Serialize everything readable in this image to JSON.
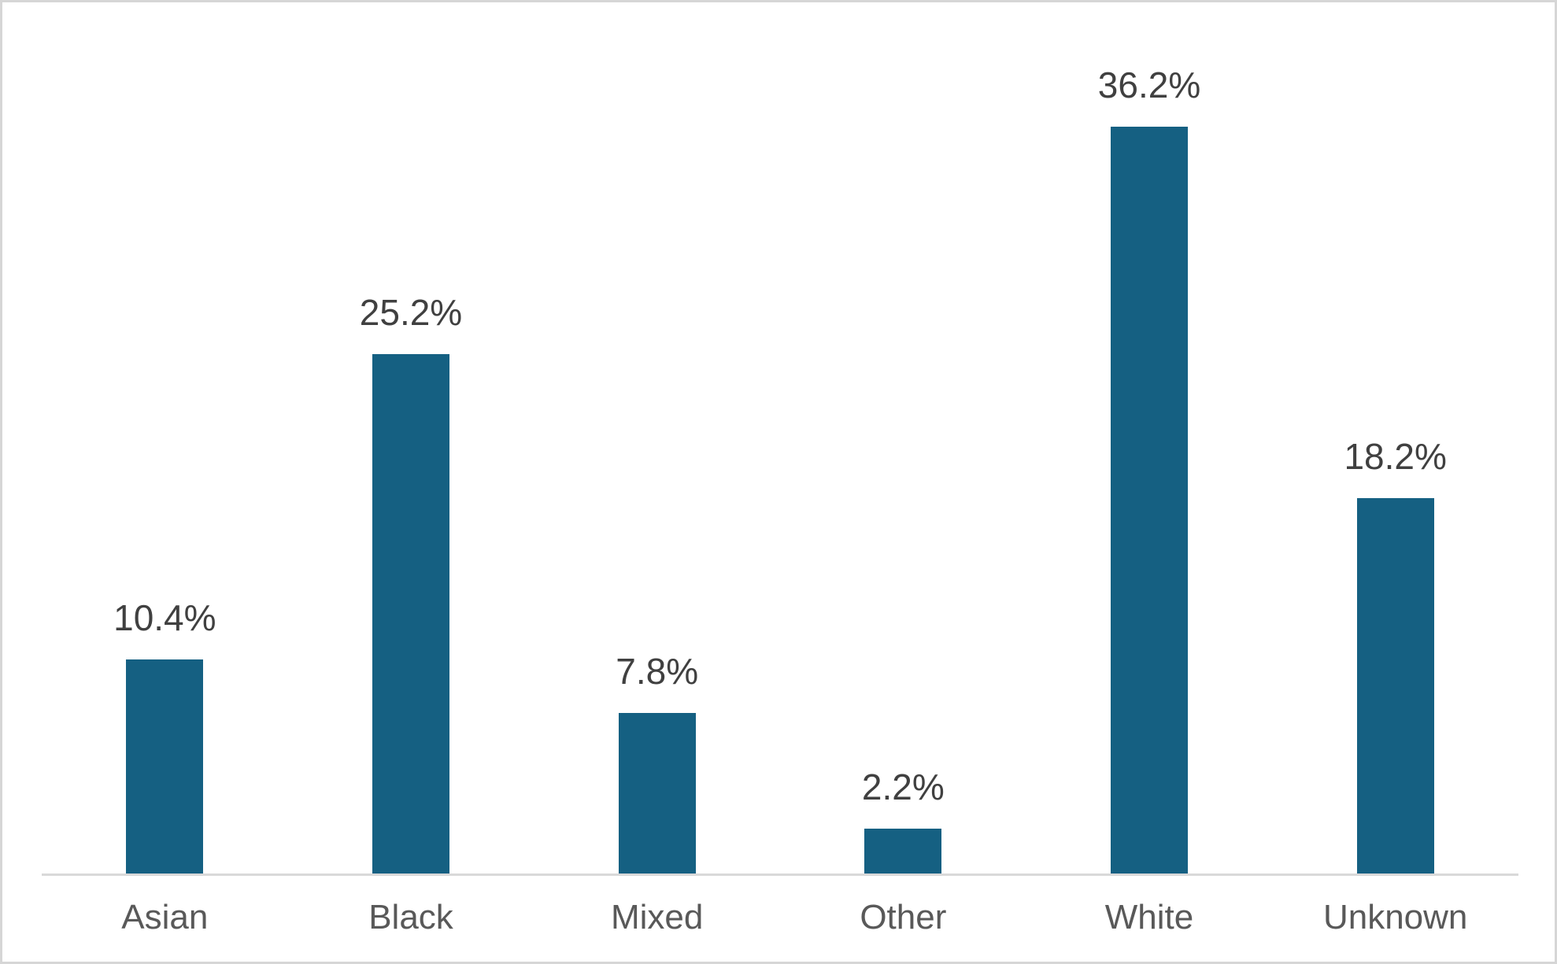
{
  "chart_data": {
    "type": "bar",
    "categories": [
      "Asian",
      "Black",
      "Mixed",
      "Other",
      "White",
      "Unknown"
    ],
    "values": [
      10.4,
      25.2,
      7.8,
      2.2,
      36.2,
      18.2
    ],
    "data_labels": [
      "10.4%",
      "25.2%",
      "7.8%",
      "2.2%",
      "36.2%",
      "18.2%"
    ],
    "title": "",
    "xlabel": "",
    "ylabel": "",
    "ylim": [
      0,
      40
    ],
    "grid": false,
    "legend": false,
    "y_axis_visible": false,
    "colors": {
      "bar_fill": "#156082",
      "data_label": "#404040",
      "category_label": "#595959",
      "axis_line": "#d9d9d9",
      "frame_border": "#d6d6d6",
      "background": "#ffffff"
    }
  }
}
